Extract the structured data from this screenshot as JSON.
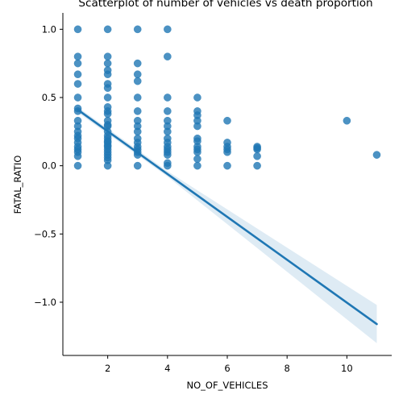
{
  "chart_data": {
    "type": "scatter",
    "title": "Scatterplot of number of vehicles vs death proportion",
    "xlabel": "NO_OF_VEHICLES",
    "ylabel": "FATAL_RATIO",
    "xlim": [
      0.5,
      11.5
    ],
    "ylim": [
      -1.39,
      1.12
    ],
    "xticks": [
      2,
      4,
      6,
      8,
      10
    ],
    "yticks": [
      -1.0,
      -0.5,
      0.0,
      0.5,
      1.0
    ],
    "xtick_labels": [
      "2",
      "4",
      "6",
      "8",
      "10"
    ],
    "ytick_labels": [
      "−1.0",
      "−0.5",
      "0.0",
      "0.5",
      "1.0"
    ],
    "grid": false,
    "colors": {
      "points": "#1f77b4",
      "line": "#1f77b4",
      "band": "#1f77b4"
    },
    "points": [
      [
        1,
        1.0
      ],
      [
        1,
        0.8
      ],
      [
        1,
        0.75
      ],
      [
        1,
        0.67
      ],
      [
        1,
        0.6
      ],
      [
        1,
        0.5
      ],
      [
        1,
        0.42
      ],
      [
        1,
        0.4
      ],
      [
        1,
        0.33
      ],
      [
        1,
        0.29
      ],
      [
        1,
        0.25
      ],
      [
        1,
        0.22
      ],
      [
        1,
        0.2
      ],
      [
        1,
        0.17
      ],
      [
        1,
        0.14
      ],
      [
        1,
        0.12
      ],
      [
        1,
        0.1
      ],
      [
        1,
        0.07
      ],
      [
        1,
        0.0
      ],
      [
        2,
        1.0
      ],
      [
        2,
        0.8
      ],
      [
        2,
        0.75
      ],
      [
        2,
        0.7
      ],
      [
        2,
        0.67
      ],
      [
        2,
        0.6
      ],
      [
        2,
        0.57
      ],
      [
        2,
        0.5
      ],
      [
        2,
        0.43
      ],
      [
        2,
        0.4
      ],
      [
        2,
        0.38
      ],
      [
        2,
        0.33
      ],
      [
        2,
        0.3
      ],
      [
        2,
        0.29
      ],
      [
        2,
        0.25
      ],
      [
        2,
        0.22
      ],
      [
        2,
        0.2
      ],
      [
        2,
        0.18
      ],
      [
        2,
        0.17
      ],
      [
        2,
        0.15
      ],
      [
        2,
        0.14
      ],
      [
        2,
        0.12
      ],
      [
        2,
        0.1
      ],
      [
        2,
        0.08
      ],
      [
        2,
        0.06
      ],
      [
        2,
        0.04
      ],
      [
        2,
        0.0
      ],
      [
        3,
        1.0
      ],
      [
        3,
        0.75
      ],
      [
        3,
        0.67
      ],
      [
        3,
        0.62
      ],
      [
        3,
        0.5
      ],
      [
        3,
        0.4
      ],
      [
        3,
        0.33
      ],
      [
        3,
        0.29
      ],
      [
        3,
        0.25
      ],
      [
        3,
        0.2
      ],
      [
        3,
        0.17
      ],
      [
        3,
        0.14
      ],
      [
        3,
        0.12
      ],
      [
        3,
        0.1
      ],
      [
        3,
        0.08
      ],
      [
        3,
        0.0
      ],
      [
        4,
        1.0
      ],
      [
        4,
        0.8
      ],
      [
        4,
        0.5
      ],
      [
        4,
        0.4
      ],
      [
        4,
        0.33
      ],
      [
        4,
        0.29
      ],
      [
        4,
        0.25
      ],
      [
        4,
        0.2
      ],
      [
        4,
        0.17
      ],
      [
        4,
        0.14
      ],
      [
        4,
        0.12
      ],
      [
        4,
        0.1
      ],
      [
        4,
        0.08
      ],
      [
        4,
        0.02
      ],
      [
        4,
        0.0
      ],
      [
        5,
        0.5
      ],
      [
        5,
        0.4
      ],
      [
        5,
        0.37
      ],
      [
        5,
        0.33
      ],
      [
        5,
        0.29
      ],
      [
        5,
        0.2
      ],
      [
        5,
        0.18
      ],
      [
        5,
        0.14
      ],
      [
        5,
        0.12
      ],
      [
        5,
        0.1
      ],
      [
        5,
        0.05
      ],
      [
        5,
        0.0
      ],
      [
        6,
        0.33
      ],
      [
        6,
        0.17
      ],
      [
        6,
        0.14
      ],
      [
        6,
        0.12
      ],
      [
        6,
        0.1
      ],
      [
        6,
        0.0
      ],
      [
        7,
        0.14
      ],
      [
        7,
        0.13
      ],
      [
        7,
        0.12
      ],
      [
        7,
        0.07
      ],
      [
        7,
        0.0
      ],
      [
        10,
        0.33
      ],
      [
        11,
        0.08
      ]
    ],
    "regression": {
      "x": [
        1,
        11
      ],
      "y": [
        0.41,
        -1.16
      ]
    },
    "confidence_band": {
      "x": [
        1,
        4,
        11
      ],
      "upper": [
        0.43,
        -0.04,
        -1.02
      ],
      "lower": [
        0.39,
        -0.08,
        -1.3
      ]
    }
  }
}
